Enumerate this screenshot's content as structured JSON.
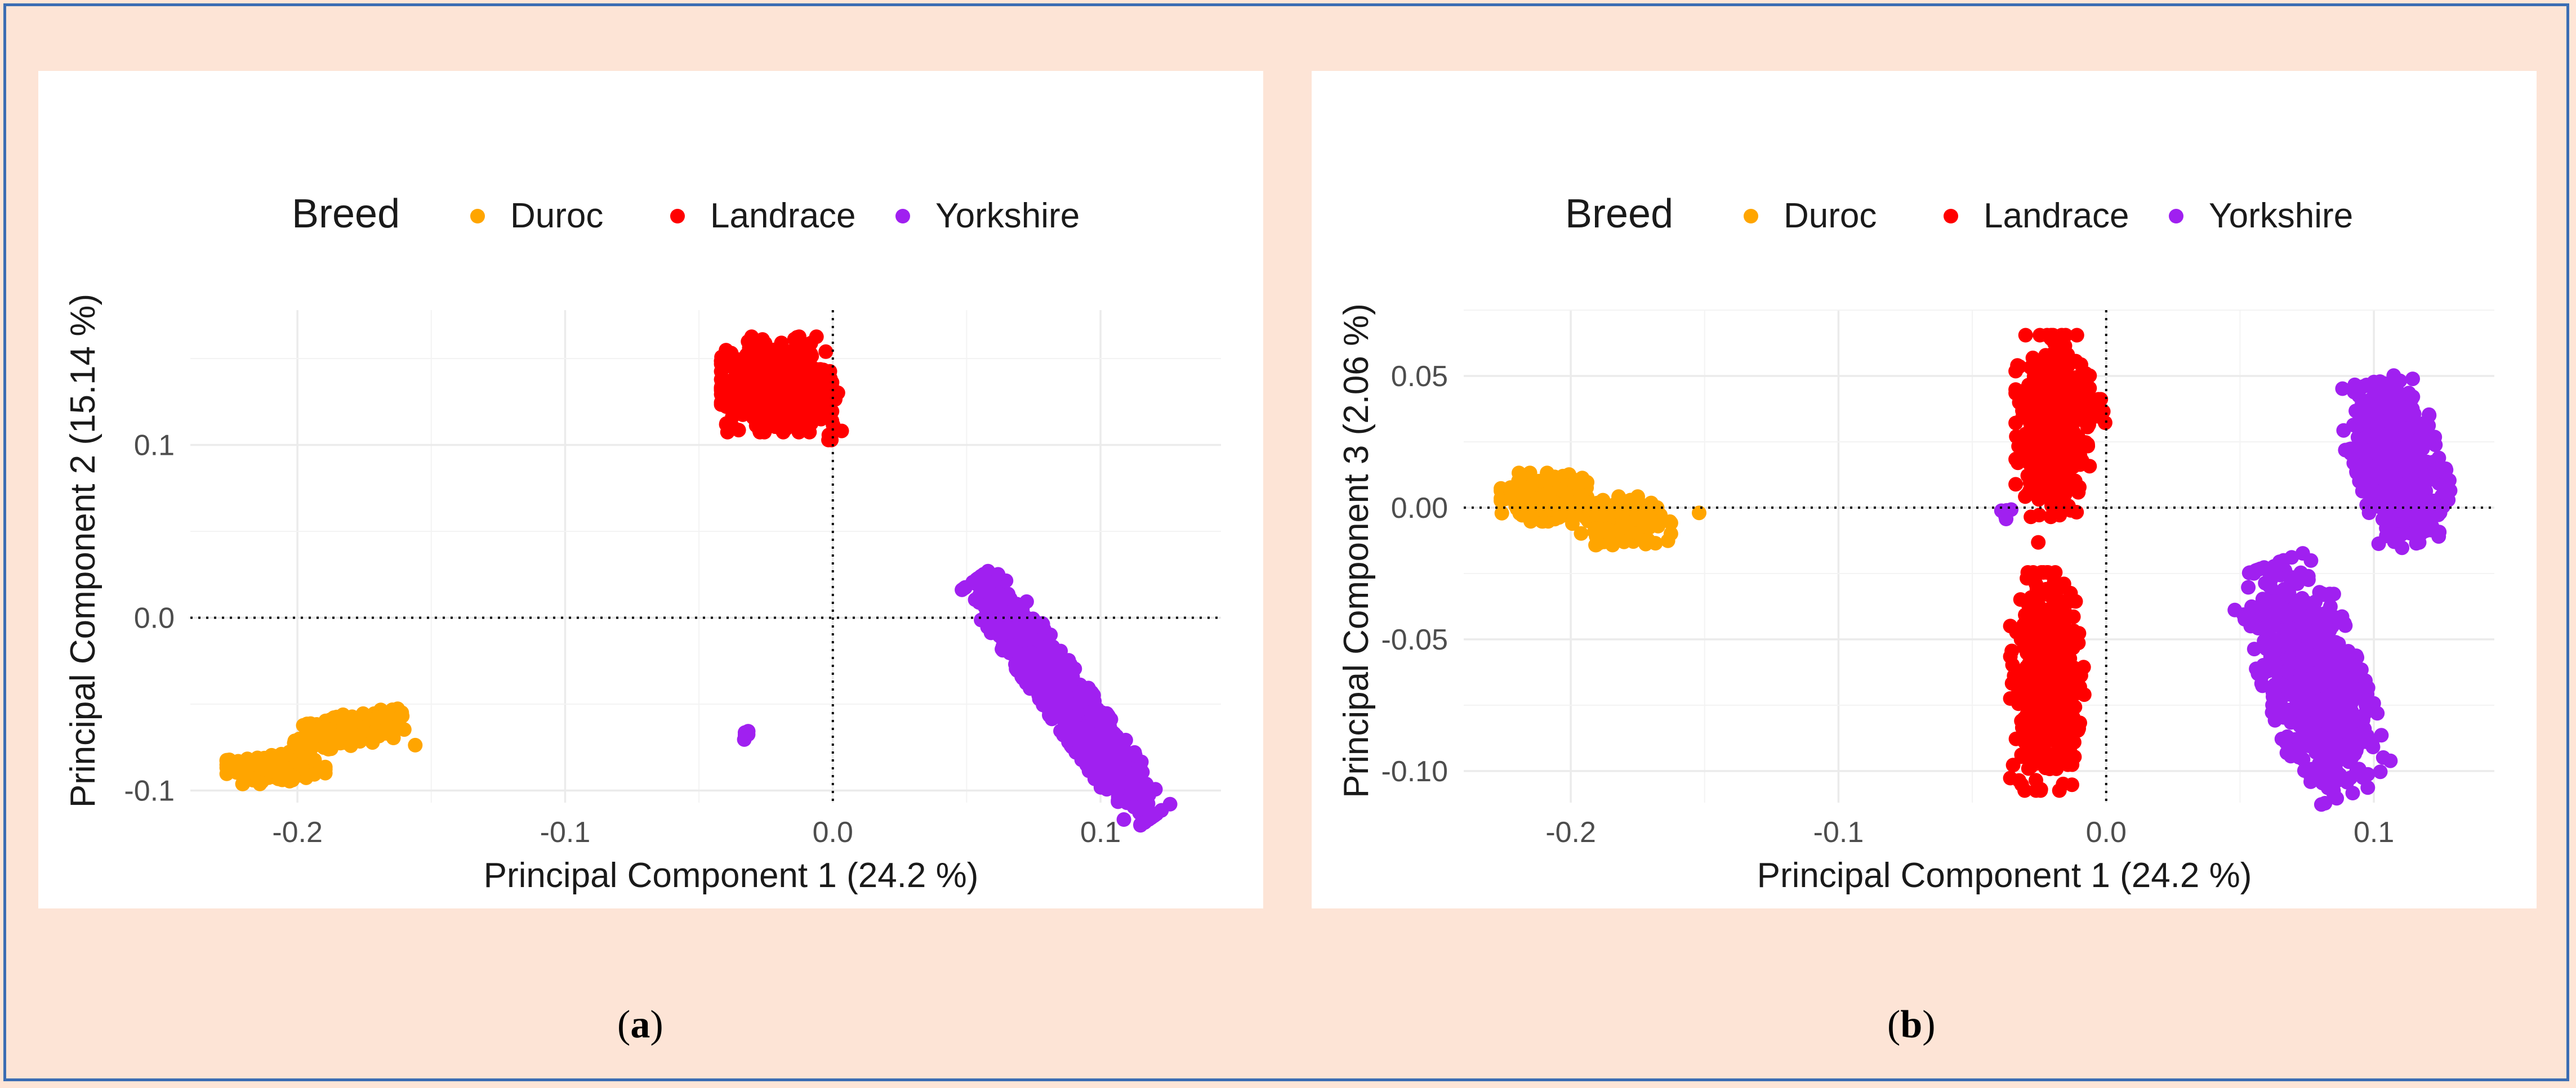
{
  "chart_data": [
    {
      "type": "scatter",
      "id": "a",
      "caption": "a",
      "legend": {
        "title": "Breed",
        "entries": [
          {
            "name": "Duroc",
            "color": "#FFA500"
          },
          {
            "name": "Landrace",
            "color": "#FF0000"
          },
          {
            "name": "Yorkshire",
            "color": "#A020F0"
          }
        ],
        "placement": "top"
      },
      "xlabel": "Principal Component 1 (24.2 %)",
      "ylabel": "Principal Component 2 (15.14 %)",
      "xlim": [
        -0.24,
        0.145
      ],
      "ylim": [
        -0.107,
        0.178
      ],
      "xticks": [
        -0.2,
        -0.1,
        0.0,
        0.1
      ],
      "xtick_labels": [
        "-0.2",
        "-0.1",
        "0.0",
        "0.1"
      ],
      "yticks": [
        -0.1,
        0.0,
        0.1
      ],
      "ytick_labels": [
        "-0.1",
        "0.0",
        "0.1"
      ],
      "reference_lines": {
        "x": 0,
        "y": 0
      },
      "clusters": [
        {
          "series": "Duroc",
          "center": [
            -0.208,
            -0.087
          ],
          "spread": [
            0.008,
            0.004
          ],
          "angle": 0,
          "count": 320
        },
        {
          "series": "Duroc",
          "center": [
            -0.181,
            -0.065
          ],
          "spread": [
            0.009,
            0.004
          ],
          "angle": 0.15,
          "count": 240
        },
        {
          "series": "Duroc",
          "center": [
            -0.155,
            -0.073
          ],
          "spread": [
            0.0008,
            0.0008
          ],
          "angle": 0,
          "count": 1
        },
        {
          "series": "Landrace",
          "center": [
            -0.021,
            0.135
          ],
          "spread": [
            0.009,
            0.012
          ],
          "angle": 0,
          "count": 650
        },
        {
          "series": "Landrace",
          "center": [
            -0.004,
            0.124
          ],
          "spread": [
            0.003,
            0.004
          ],
          "angle": 0,
          "count": 16
        },
        {
          "series": "Landrace",
          "center": [
            0.0,
            0.109
          ],
          "spread": [
            0.002,
            0.003
          ],
          "angle": 0,
          "count": 6
        },
        {
          "series": "Yorkshire",
          "center": [
            0.087,
            -0.046
          ],
          "spread": [
            0.024,
            0.006
          ],
          "angle": -0.95,
          "count": 1300
        },
        {
          "series": "Yorkshire",
          "center": [
            -0.032,
            -0.067
          ],
          "spread": [
            0.001,
            0.002
          ],
          "angle": 0,
          "count": 6
        }
      ]
    },
    {
      "type": "scatter",
      "id": "b",
      "caption": "b",
      "legend": {
        "title": "Breed",
        "entries": [
          {
            "name": "Duroc",
            "color": "#FFA500"
          },
          {
            "name": "Landrace",
            "color": "#FF0000"
          },
          {
            "name": "Yorkshire",
            "color": "#A020F0"
          }
        ],
        "placement": "top"
      },
      "xlabel": "Principal Component 1 (24.2 %)",
      "ylabel": "Principal Component 3 (2.06 %)",
      "xlim": [
        -0.24,
        0.145
      ],
      "ylim": [
        -0.112,
        0.075
      ],
      "xticks": [
        -0.2,
        -0.1,
        0.0,
        0.1
      ],
      "xtick_labels": [
        "-0.2",
        "-0.1",
        "0.0",
        "0.1"
      ],
      "yticks": [
        -0.1,
        -0.05,
        0.0,
        0.05
      ],
      "ytick_labels": [
        "-0.10",
        "-0.05",
        "0.00",
        "0.05"
      ],
      "reference_lines": {
        "x": 0,
        "y": 0
      },
      "clusters": [
        {
          "series": "Duroc",
          "center": [
            -0.21,
            0.004
          ],
          "spread": [
            0.007,
            0.004
          ],
          "angle": 0,
          "count": 300
        },
        {
          "series": "Duroc",
          "center": [
            -0.181,
            -0.005
          ],
          "spread": [
            0.008,
            0.004
          ],
          "angle": 0,
          "count": 240
        },
        {
          "series": "Duroc",
          "center": [
            -0.152,
            -0.001
          ],
          "spread": [
            0.0008,
            0.0008
          ],
          "angle": 0,
          "count": 1
        },
        {
          "series": "Landrace",
          "center": [
            -0.02,
            0.031
          ],
          "spread": [
            0.006,
            0.015
          ],
          "angle": 0,
          "count": 520
        },
        {
          "series": "Landrace",
          "center": [
            -0.022,
            -0.066
          ],
          "spread": [
            0.006,
            0.018
          ],
          "angle": 0,
          "count": 520
        },
        {
          "series": "Landrace",
          "center": [
            -0.005,
            0.037
          ],
          "spread": [
            0.002,
            0.004
          ],
          "angle": 0,
          "count": 8
        },
        {
          "series": "Landrace",
          "center": [
            -0.025,
            -0.013
          ],
          "spread": [
            0.0005,
            0.0005
          ],
          "angle": 0,
          "count": 1
        },
        {
          "series": "Yorkshire",
          "center": [
            0.109,
            0.018
          ],
          "spread": [
            0.007,
            0.014
          ],
          "angle": 0.3,
          "count": 650
        },
        {
          "series": "Yorkshire",
          "center": [
            0.077,
            -0.065
          ],
          "spread": [
            0.008,
            0.02
          ],
          "angle": 0.35,
          "count": 800
        },
        {
          "series": "Yorkshire",
          "center": [
            -0.036,
            -0.002
          ],
          "spread": [
            0.002,
            0.0015
          ],
          "angle": 0,
          "count": 5
        },
        {
          "series": "Yorkshire",
          "center": [
            0.089,
            0.022
          ],
          "spread": [
            0.0006,
            0.0006
          ],
          "angle": 0,
          "count": 1
        }
      ]
    }
  ]
}
